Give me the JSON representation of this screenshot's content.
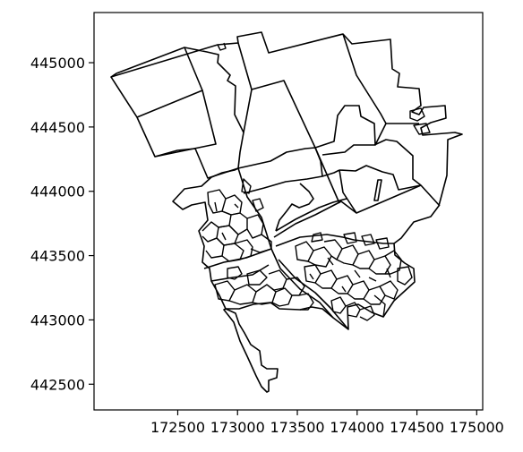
{
  "chart_data": {
    "type": "map",
    "title": "",
    "xlabel": "",
    "ylabel": "",
    "xlim": [
      171800,
      175050
    ],
    "ylim": [
      442300,
      445390
    ],
    "x_ticks": [
      172500,
      173000,
      173500,
      174000,
      174500,
      175000
    ],
    "x_tick_labels": [
      "172500",
      "173000",
      "173500",
      "174000",
      "174500",
      "175000"
    ],
    "y_ticks": [
      442500,
      443000,
      443500,
      444000,
      444500,
      445000
    ],
    "y_tick_labels": [
      "442500",
      "443000",
      "443500",
      "444000",
      "444500",
      "445000"
    ],
    "stroke_color": "#000000",
    "fill_color": "none",
    "grid": false,
    "legend": "none"
  }
}
